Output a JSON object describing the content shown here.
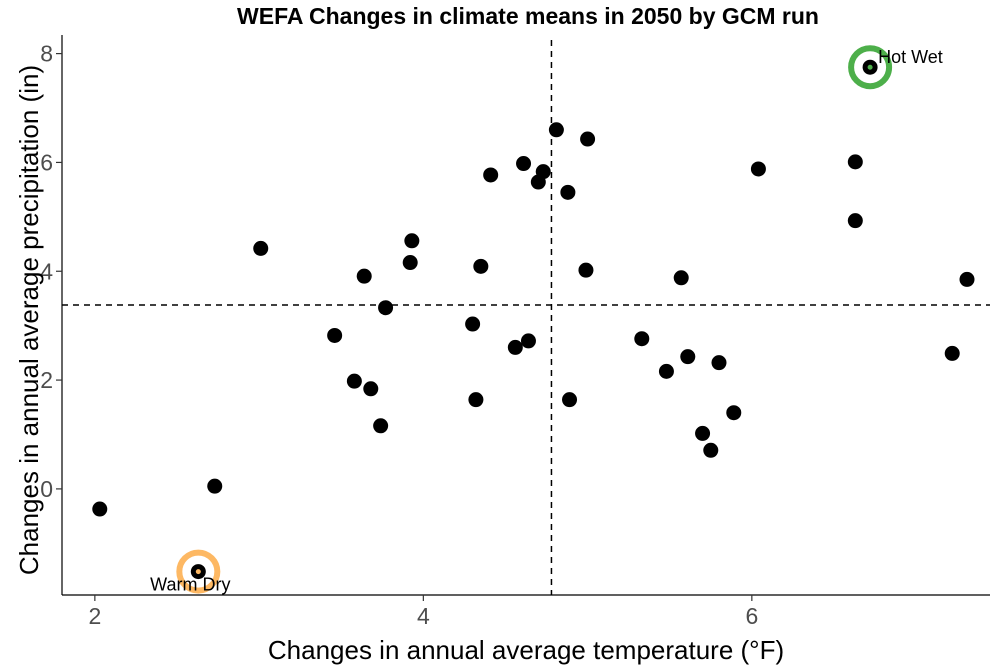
{
  "chart_data": {
    "type": "scatter",
    "title": "WEFA Changes in climate means in 2050 by GCM run",
    "xlabel": "Changes in annual average temperature (°F)",
    "ylabel": "Changes in annual average precipitation (in)",
    "xlim": [
      1.8,
      7.45
    ],
    "ylim": [
      -1.95,
      8.25
    ],
    "x_ticks": [
      2,
      4,
      6
    ],
    "y_ticks": [
      0,
      2,
      4,
      6,
      8
    ],
    "grid": false,
    "reference_lines": {
      "x": 4.78,
      "y": 3.38
    },
    "points": [
      {
        "x": 2.03,
        "y": -0.37
      },
      {
        "x": 2.63,
        "y": -1.52
      },
      {
        "x": 2.73,
        "y": 0.05
      },
      {
        "x": 3.01,
        "y": 4.42
      },
      {
        "x": 3.46,
        "y": 2.82
      },
      {
        "x": 3.58,
        "y": 1.98
      },
      {
        "x": 3.64,
        "y": 3.91
      },
      {
        "x": 3.68,
        "y": 1.84
      },
      {
        "x": 3.74,
        "y": 1.16
      },
      {
        "x": 3.77,
        "y": 3.33
      },
      {
        "x": 3.92,
        "y": 4.16
      },
      {
        "x": 3.93,
        "y": 4.56
      },
      {
        "x": 4.3,
        "y": 3.03
      },
      {
        "x": 4.32,
        "y": 1.64
      },
      {
        "x": 4.35,
        "y": 4.09
      },
      {
        "x": 4.41,
        "y": 5.77
      },
      {
        "x": 4.56,
        "y": 2.6
      },
      {
        "x": 4.61,
        "y": 5.98
      },
      {
        "x": 4.64,
        "y": 2.72
      },
      {
        "x": 4.7,
        "y": 5.64
      },
      {
        "x": 4.73,
        "y": 5.83
      },
      {
        "x": 4.81,
        "y": 6.6
      },
      {
        "x": 4.88,
        "y": 5.45
      },
      {
        "x": 4.89,
        "y": 1.64
      },
      {
        "x": 4.99,
        "y": 4.02
      },
      {
        "x": 5.0,
        "y": 6.43
      },
      {
        "x": 5.33,
        "y": 2.76
      },
      {
        "x": 5.48,
        "y": 2.16
      },
      {
        "x": 5.57,
        "y": 3.88
      },
      {
        "x": 5.61,
        "y": 2.43
      },
      {
        "x": 5.7,
        "y": 1.02
      },
      {
        "x": 5.75,
        "y": 0.71
      },
      {
        "x": 5.8,
        "y": 2.32
      },
      {
        "x": 5.89,
        "y": 1.4
      },
      {
        "x": 6.04,
        "y": 5.88
      },
      {
        "x": 6.63,
        "y": 6.01
      },
      {
        "x": 6.63,
        "y": 4.93
      },
      {
        "x": 6.72,
        "y": 7.75
      },
      {
        "x": 7.22,
        "y": 2.49
      },
      {
        "x": 7.31,
        "y": 3.85
      }
    ],
    "highlights": [
      {
        "label": "Hot Wet",
        "x": 6.72,
        "y": 7.75,
        "ring_color": "#4daf4a",
        "inner_color": "#4daf4a"
      },
      {
        "label": "Warm Dry",
        "x": 2.63,
        "y": -1.52,
        "ring_color": "#fdb863",
        "inner_color": "#fdb863"
      }
    ],
    "point_color": "#000000"
  }
}
